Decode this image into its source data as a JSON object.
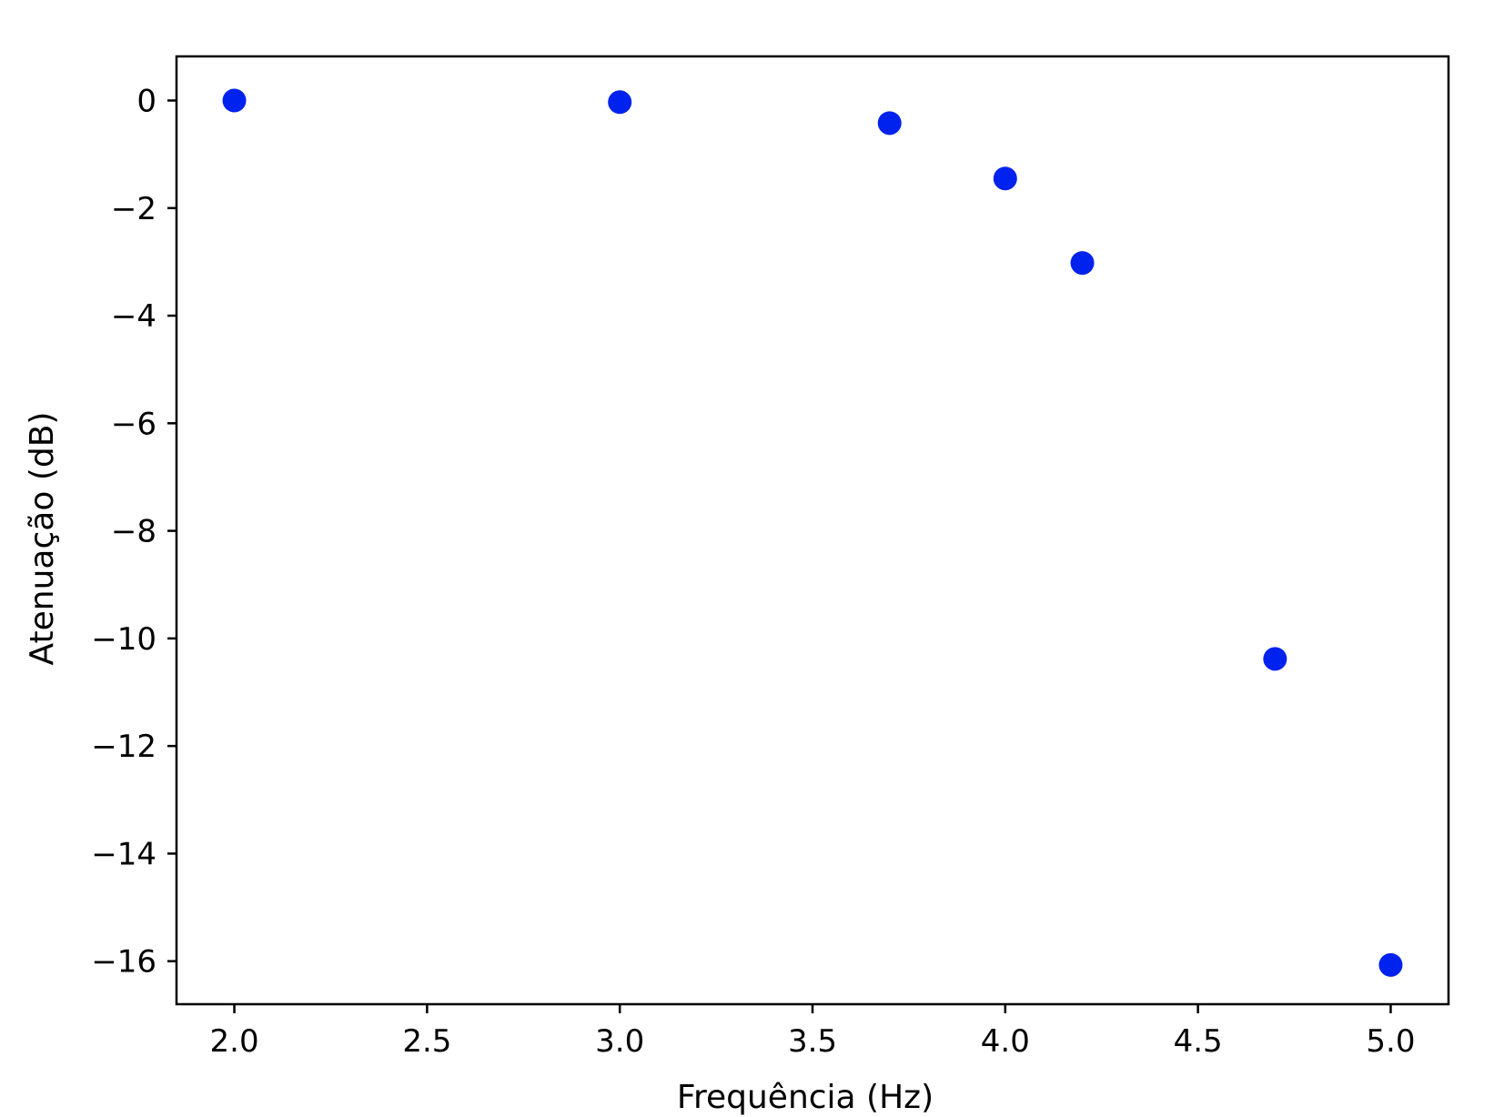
{
  "chart_data": {
    "type": "scatter",
    "title": "",
    "xlabel": "Frequência (Hz)",
    "ylabel": "Atenuação (dB)",
    "xlim": [
      1.85,
      5.15
    ],
    "ylim": [
      -16.8,
      0.82
    ],
    "xticks": [
      2.0,
      2.5,
      3.0,
      3.5,
      4.0,
      4.5,
      5.0
    ],
    "xtick_labels": [
      "2.0",
      "2.5",
      "3.0",
      "3.5",
      "4.0",
      "4.5",
      "5.0"
    ],
    "yticks": [
      0,
      -2,
      -4,
      -6,
      -8,
      -10,
      -12,
      -14,
      -16
    ],
    "ytick_labels": [
      "0",
      "−2",
      "−4",
      "−6",
      "−8",
      "−10",
      "−12",
      "−14",
      "−16"
    ],
    "grid": false,
    "series": [
      {
        "color": "#0022ee",
        "x": [
          2.0,
          3.0,
          3.7,
          4.0,
          4.2,
          4.7,
          5.0
        ],
        "y": [
          0.0,
          -0.03,
          -0.42,
          -1.45,
          -3.02,
          -10.38,
          -16.07
        ]
      }
    ]
  }
}
